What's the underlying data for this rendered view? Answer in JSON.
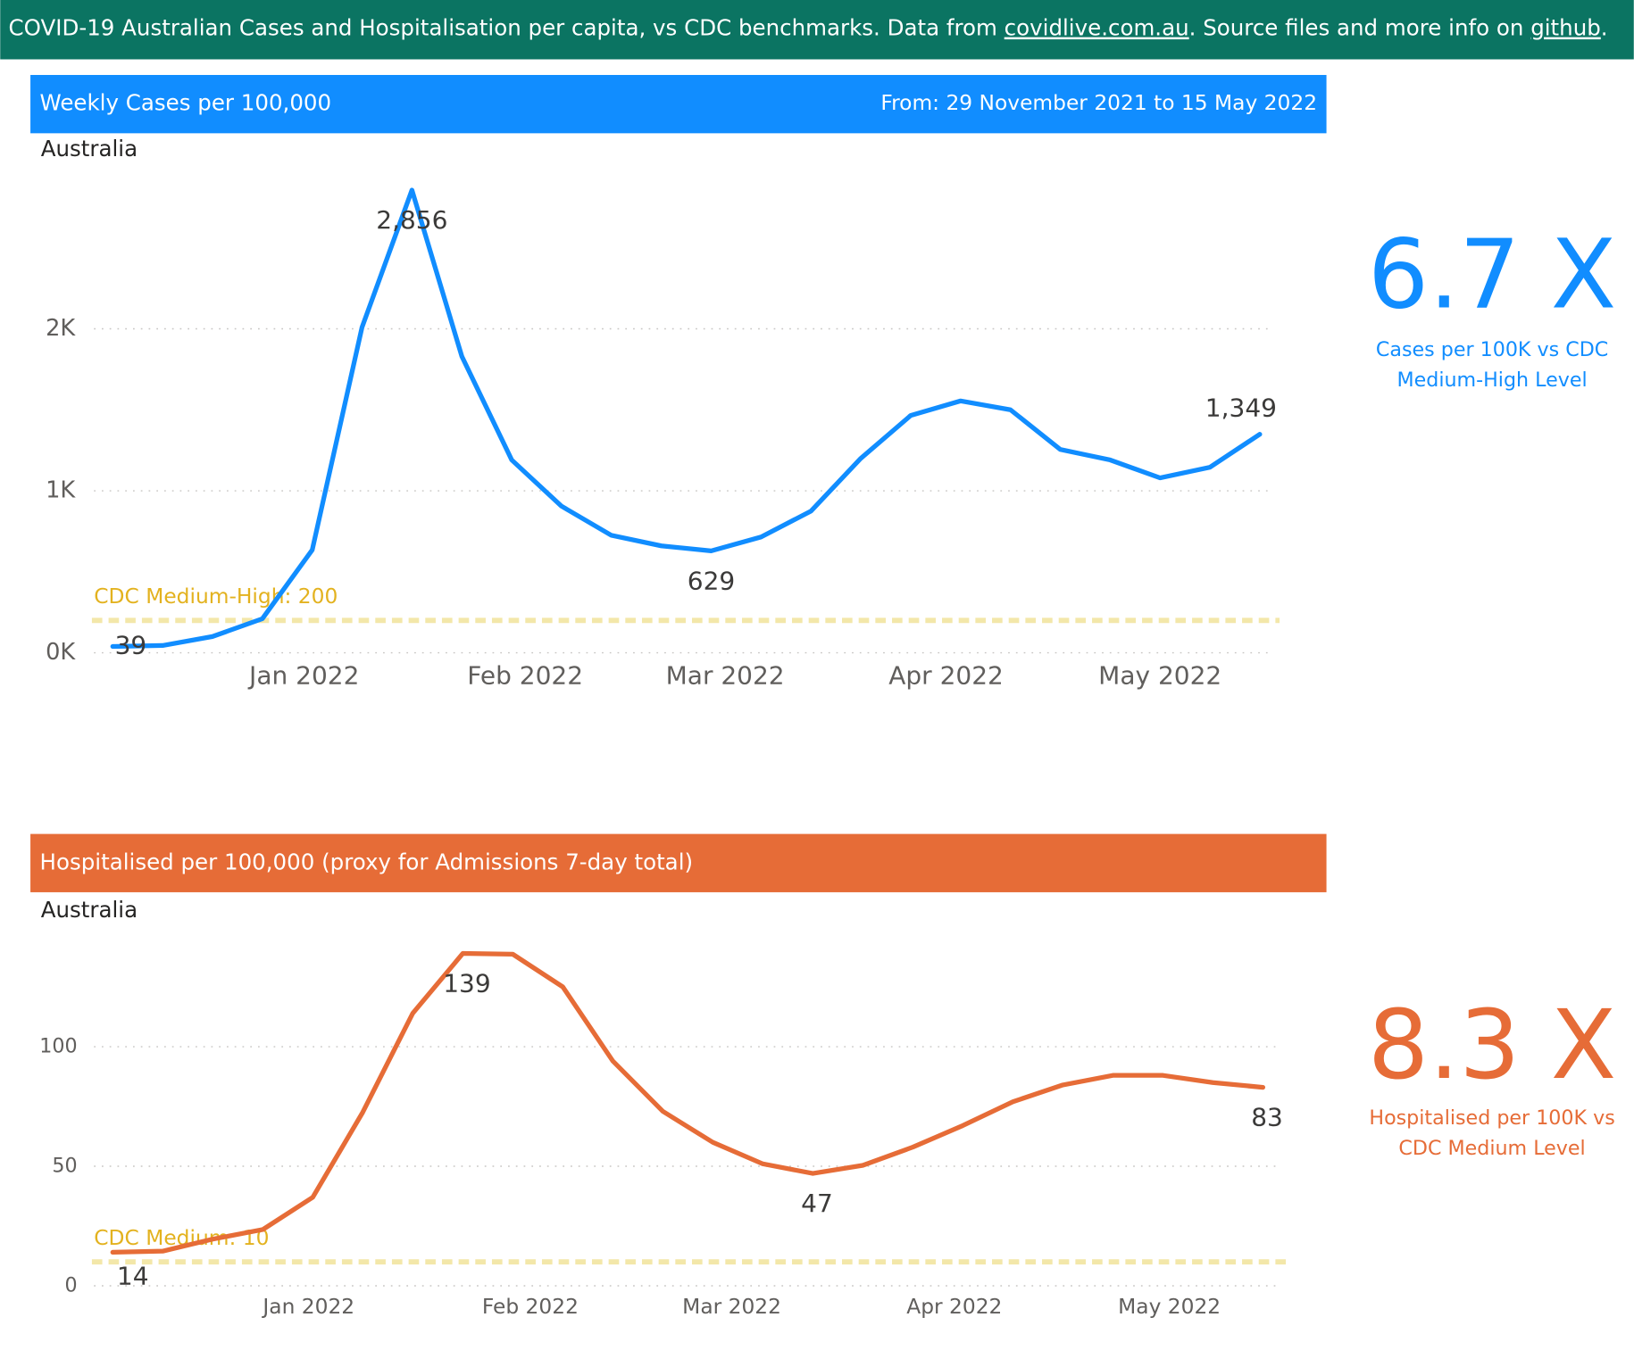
{
  "header": {
    "intro": "COVID-19 Australian Cases and Hospitalisation per capita, vs CDC benchmarks. Data from ",
    "link_1": "covidlive.com.au",
    "middle": ". Source files and more info on ",
    "link_2": "github",
    "end": "."
  },
  "chart_data": [
    {
      "type": "line",
      "title": "Weekly Cases per 100,000",
      "subtitle": "From: 29 November 2021 to 15 May 2022",
      "region": "Australia",
      "color": "#118dff",
      "banner_color": "#118dff",
      "x": [
        0,
        1,
        2,
        3,
        4,
        5,
        6,
        7,
        8,
        9,
        10,
        11,
        12,
        13,
        14,
        15,
        16,
        17,
        18,
        19,
        20,
        21,
        22,
        23
      ],
      "values": [
        39,
        45,
        100,
        210,
        635,
        2010,
        2856,
        1830,
        1190,
        905,
        725,
        660,
        629,
        715,
        875,
        1200,
        1465,
        1555,
        1500,
        1255,
        1190,
        1080,
        1145,
        1349
      ],
      "value_labels": [
        "39",
        null,
        null,
        null,
        null,
        null,
        "2,856",
        null,
        null,
        null,
        null,
        null,
        "629",
        null,
        null,
        null,
        null,
        null,
        null,
        null,
        null,
        null,
        null,
        "1,349"
      ],
      "xlim": [
        0,
        23
      ],
      "xticks": [
        {
          "value": 3.84,
          "label": "Jan 2022"
        },
        {
          "value": 8.27,
          "label": "Feb 2022"
        },
        {
          "value": 12.28,
          "label": "Mar 2022"
        },
        {
          "value": 16.71,
          "label": "Apr 2022"
        },
        {
          "value": 21.0,
          "label": "May 2022"
        }
      ],
      "ylim": [
        0,
        2950
      ],
      "yticks": [
        {
          "value": 0,
          "label": "0K"
        },
        {
          "value": 1000,
          "label": "1K"
        },
        {
          "value": 2000,
          "label": "2K"
        }
      ],
      "grid": true,
      "reference_line": {
        "value": 200,
        "label": "CDC Medium-High: 200",
        "color": "#f3e7a9",
        "label_color": "#e3b21f"
      },
      "kpi": {
        "value": "6.7 X",
        "label": "Cases per 100K vs CDC Medium-High Level"
      }
    },
    {
      "type": "line",
      "title": "Hospitalised per 100,000 (proxy for Admissions 7-day total)",
      "region": "Australia",
      "color": "#e66c37",
      "banner_color": "#e66c37",
      "x": [
        0,
        1,
        2,
        3,
        4,
        5,
        6,
        7,
        8,
        9,
        10,
        11,
        12,
        13,
        14,
        15,
        16,
        17,
        18,
        19,
        20,
        21,
        22,
        23
      ],
      "values": [
        14,
        14.5,
        19.5,
        23.5,
        37,
        72.6,
        114,
        139,
        138.7,
        125,
        94,
        73,
        60,
        51,
        47,
        50.4,
        58,
        67,
        77,
        84,
        88,
        88,
        85,
        83
      ],
      "value_labels": [
        "14",
        null,
        null,
        null,
        null,
        null,
        null,
        "139",
        null,
        null,
        null,
        null,
        null,
        null,
        "47",
        null,
        null,
        null,
        null,
        null,
        null,
        null,
        null,
        "83"
      ],
      "xlim": [
        0,
        23
      ],
      "xticks": [
        {
          "value": 3.92,
          "label": "Jan 2022"
        },
        {
          "value": 8.35,
          "label": "Feb 2022"
        },
        {
          "value": 12.38,
          "label": "Mar 2022"
        },
        {
          "value": 16.83,
          "label": "Apr 2022"
        },
        {
          "value": 21.13,
          "label": "May 2022"
        }
      ],
      "ylim": [
        0,
        145
      ],
      "yticks": [
        0,
        50,
        100
      ],
      "grid": true,
      "reference_line": {
        "value": 10,
        "label": "CDC Medium: 10",
        "color": "#f3e7a9",
        "label_color": "#e3b21f"
      },
      "kpi": {
        "value": "8.3 X",
        "label": "Hospitalised per 100K vs CDC Medium Level"
      }
    }
  ]
}
